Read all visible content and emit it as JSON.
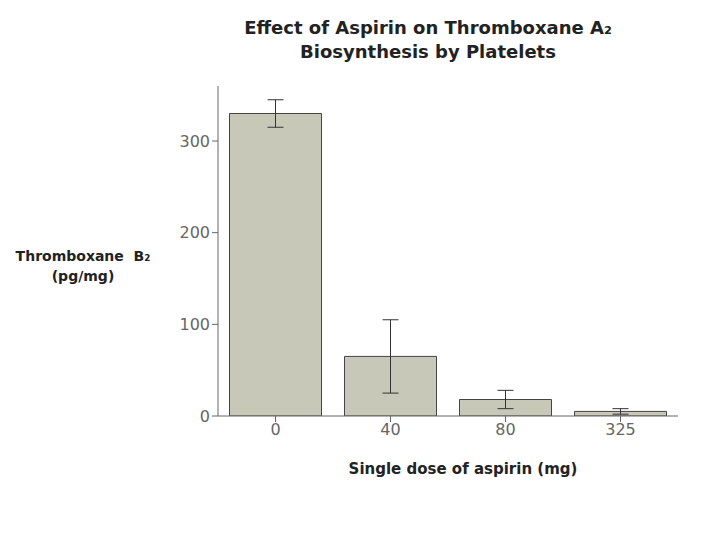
{
  "chart_data": {
    "type": "bar",
    "title": "Effect of Aspirin on Thromboxane A₂\nBiosynthesis by Platelets",
    "ylabel": "Thromboxane  B₂\n(pg/mg)",
    "xlabel": "Single dose of aspirin (mg)",
    "categories": [
      "0",
      "40",
      "80",
      "325"
    ],
    "values": [
      330,
      65,
      18,
      5
    ],
    "errors": [
      15,
      40,
      10,
      3
    ],
    "color": "#c8c8b8",
    "ylim": [
      0,
      360
    ],
    "yticks": [
      0,
      100,
      200,
      300
    ],
    "grid": false
  }
}
